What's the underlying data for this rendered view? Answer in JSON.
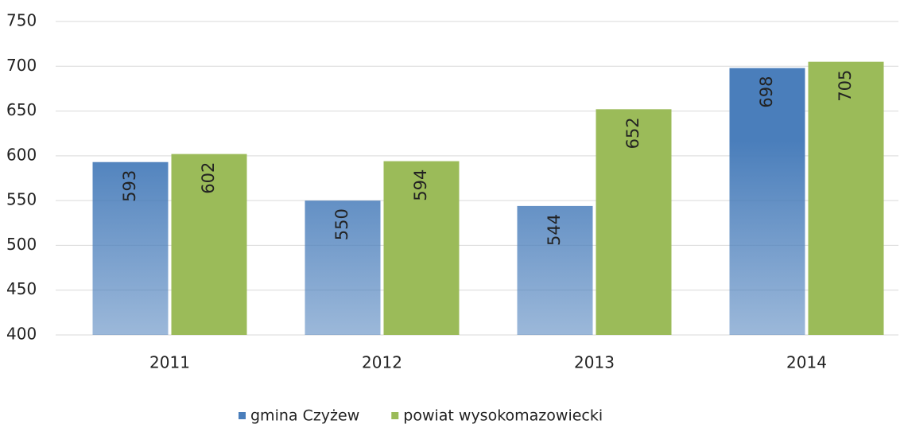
{
  "chart_data": {
    "type": "bar",
    "categories": [
      "2011",
      "2012",
      "2013",
      "2014"
    ],
    "series": [
      {
        "name": "gmina Czyżew",
        "color": "#4a7ebb",
        "gradient": true,
        "values": [
          593,
          550,
          544,
          698
        ]
      },
      {
        "name": "powiat wysokomazowiecki",
        "color": "#9bbb59",
        "gradient": false,
        "values": [
          602,
          594,
          652,
          705
        ]
      }
    ],
    "ylim": [
      400,
      750
    ],
    "yticks": [
      400,
      450,
      500,
      550,
      600,
      650,
      700,
      750
    ],
    "grid": true,
    "legend": "bottom"
  }
}
